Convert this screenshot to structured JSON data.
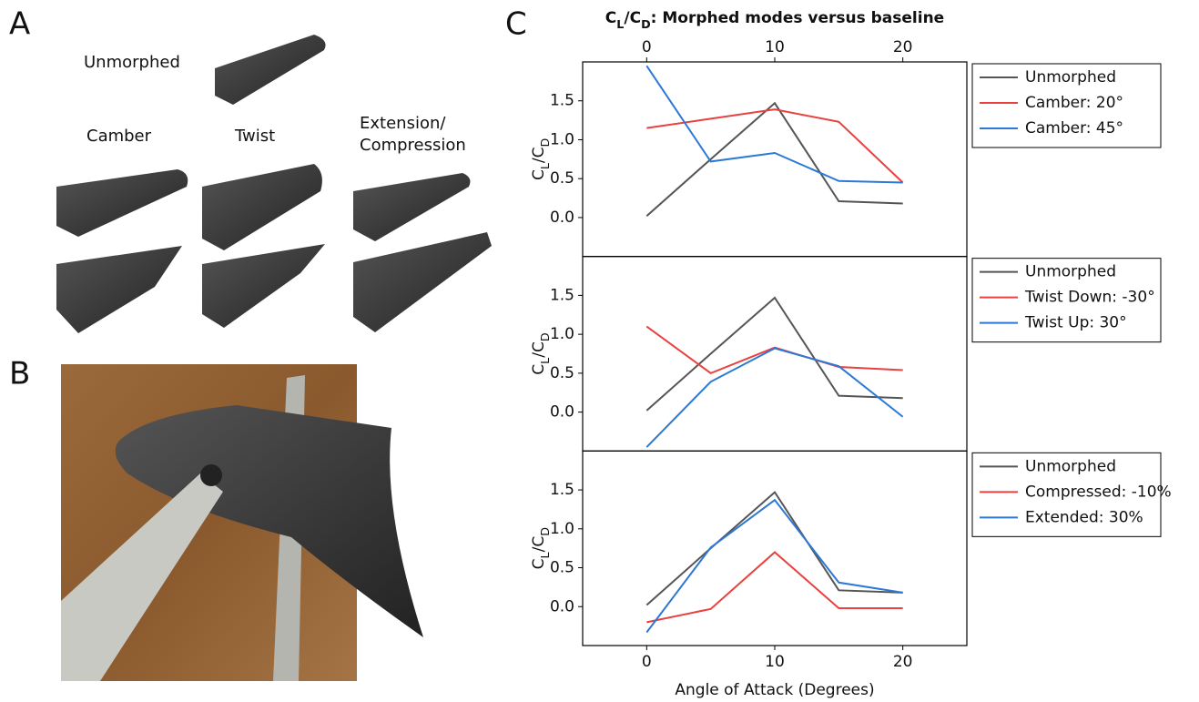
{
  "panels": {
    "a": "A",
    "b": "B",
    "c": "C"
  },
  "photo_labels": {
    "unmorphed": "Unmorphed",
    "camber": "Camber",
    "twist": "Twist",
    "extension": [
      "Extension/",
      "Compression"
    ]
  },
  "chart_data": [
    {
      "type": "line",
      "title": "CL/CD: Morphed modes versus baseline",
      "ylabel": "CL/CD",
      "x": [
        0,
        5,
        10,
        15,
        20
      ],
      "xlim": [
        -5,
        25
      ],
      "xticks": [
        0,
        10,
        20
      ],
      "xaxis": "top",
      "ylim": [
        -0.5,
        2.0
      ],
      "yticks": [
        {
          "value": 0,
          "label": "0.0"
        },
        0.5,
        {
          "value": 1,
          "label": "1.0"
        },
        1.5
      ],
      "legend": "outside-right",
      "series": [
        {
          "name": "Unmorphed",
          "color": "#555555",
          "values": [
            0.02,
            0.75,
            1.47,
            0.21,
            0.18
          ]
        },
        {
          "name": "Camber: 20°",
          "color": "#e8413e",
          "values": [
            1.15,
            1.27,
            1.39,
            1.23,
            0.45
          ]
        },
        {
          "name": "Camber: 45°",
          "color": "#2b78d6",
          "values": [
            1.95,
            0.72,
            0.83,
            0.47,
            0.45
          ]
        }
      ]
    },
    {
      "type": "line",
      "ylabel": "CL/CD",
      "x": [
        0,
        5,
        10,
        15,
        20
      ],
      "xlim": [
        -5,
        25
      ],
      "ylim": [
        -0.5,
        2.0
      ],
      "yticks": [
        {
          "value": 0,
          "label": "0.0"
        },
        0.5,
        {
          "value": 1,
          "label": "1.0"
        },
        1.5
      ],
      "legend": "outside-right",
      "series": [
        {
          "name": "Unmorphed",
          "color": "#555555",
          "values": [
            0.02,
            0.75,
            1.47,
            0.21,
            0.18
          ]
        },
        {
          "name": "Twist Down: -30°",
          "color": "#e8413e",
          "values": [
            1.1,
            0.5,
            0.83,
            0.58,
            0.54
          ]
        },
        {
          "name": "Twist Up: 30°",
          "color": "#2b78d6",
          "values": [
            -0.45,
            0.39,
            0.82,
            0.59,
            -0.06
          ]
        }
      ]
    },
    {
      "type": "line",
      "ylabel": "CL/CD",
      "xlabel": "Angle of Attack (Degrees)",
      "x": [
        0,
        5,
        10,
        15,
        20
      ],
      "xlim": [
        -5,
        25
      ],
      "xticks": [
        0,
        10,
        20
      ],
      "xaxis": "bottom",
      "ylim": [
        -0.5,
        2.0
      ],
      "yticks": [
        {
          "value": 0,
          "label": "0.0"
        },
        0.5,
        {
          "value": 1,
          "label": "1.0"
        },
        1.5
      ],
      "legend": "outside-right",
      "series": [
        {
          "name": "Unmorphed",
          "color": "#555555",
          "values": [
            0.02,
            0.75,
            1.47,
            0.21,
            0.18
          ]
        },
        {
          "name": "Compressed: -10%",
          "color": "#e8413e",
          "values": [
            -0.2,
            -0.03,
            0.7,
            -0.02,
            -0.02
          ]
        },
        {
          "name": "Extended: 30%",
          "color": "#2b78d6",
          "values": [
            -0.33,
            0.76,
            1.37,
            0.31,
            0.18
          ]
        }
      ]
    }
  ]
}
